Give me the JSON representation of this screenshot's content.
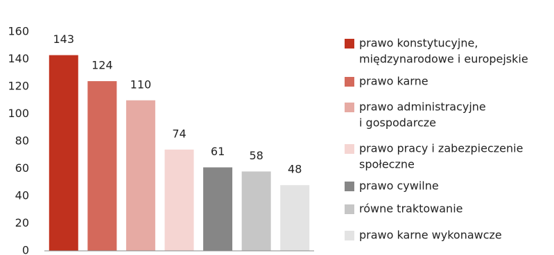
{
  "chart_data": {
    "type": "bar",
    "categories": [
      [
        "prawo konstytucyjne,",
        "międzynarodowe i europejskie"
      ],
      [
        "prawo karne"
      ],
      [
        "prawo administracyjne",
        "i gospodarcze"
      ],
      [
        "prawo pracy i zabezpieczenie",
        "społeczne"
      ],
      [
        "prawo cywilne"
      ],
      [
        "równe traktowanie"
      ],
      [
        "prawo karne wykonawcze"
      ]
    ],
    "values": [
      143,
      124,
      110,
      74,
      61,
      58,
      48
    ],
    "colors": [
      "#c0311e",
      "#d4695b",
      "#e6aaa3",
      "#f5d5d2",
      "#868686",
      "#c6c6c6",
      "#e3e3e3"
    ],
    "ylim": [
      0,
      160
    ],
    "yticks": [
      0,
      20,
      40,
      60,
      80,
      100,
      120,
      140,
      160
    ],
    "grid": false,
    "legend": "right"
  }
}
